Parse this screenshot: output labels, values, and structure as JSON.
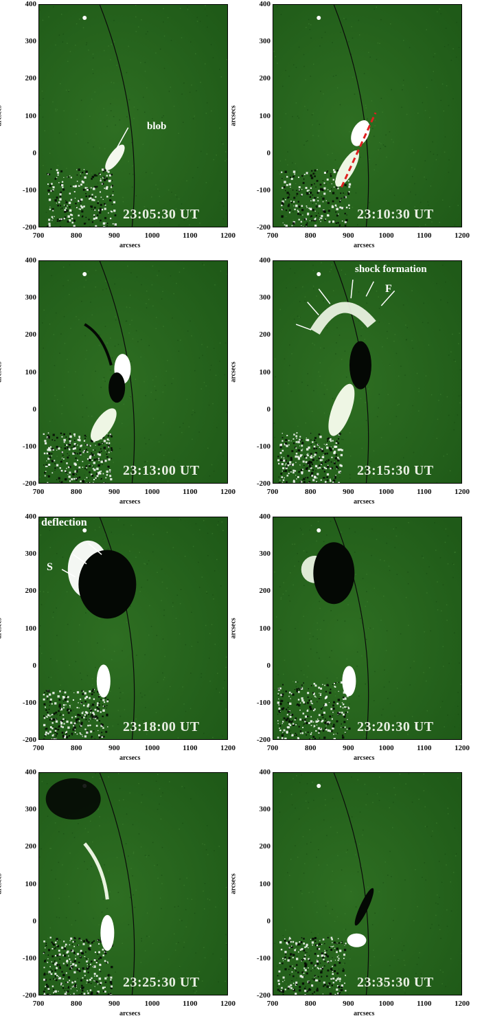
{
  "axes": {
    "ylabel": "arcsecs",
    "xlabel": "arcsecs",
    "yticks": [
      "400",
      "300",
      "200",
      "100",
      "0",
      "-100",
      "-200"
    ],
    "xticks": [
      "700",
      "800",
      "900",
      "1000",
      "1100",
      "1200"
    ]
  },
  "colors": {
    "background": "#1f5a18",
    "limb": "#0a0a0a",
    "bright": "#ffffff",
    "dark": "#050805",
    "trajectory": "#e02020"
  },
  "panels": [
    {
      "id": "p1",
      "timestamp": "23:05:30 UT",
      "annotations": [
        "blob"
      ]
    },
    {
      "id": "p2",
      "timestamp": "23:10:30 UT",
      "annotations": []
    },
    {
      "id": "p3",
      "timestamp": "23:13:00 UT",
      "annotations": []
    },
    {
      "id": "p4",
      "timestamp": "23:15:30 UT",
      "annotations": [
        "shock formation",
        "F"
      ]
    },
    {
      "id": "p5",
      "timestamp": "23:18:00 UT",
      "annotations": [
        "deflection",
        "S"
      ]
    },
    {
      "id": "p6",
      "timestamp": "23:20:30 UT",
      "annotations": []
    },
    {
      "id": "p7",
      "timestamp": "23:25:30 UT",
      "annotations": []
    },
    {
      "id": "p8",
      "timestamp": "23:35:30 UT",
      "annotations": []
    }
  ]
}
